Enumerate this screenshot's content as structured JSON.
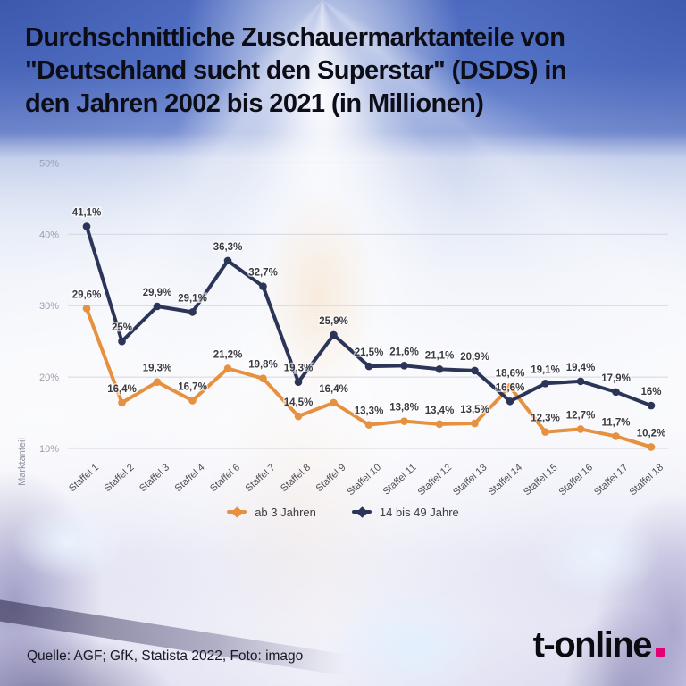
{
  "title": {
    "line1": "Durchschnittliche Zuschauermarktanteile von",
    "line2": "\"Deutschland sucht den Superstar\" (DSDS) in",
    "line3": "den Jahren 2002 bis 2021 (in Millionen)"
  },
  "chart_data": {
    "type": "line",
    "ylabel": "Marktanteil",
    "ylim": [
      10,
      50
    ],
    "grid": true,
    "legend_position": "bottom",
    "yticks": [
      {
        "value": 50,
        "label": "50%"
      },
      {
        "value": 40,
        "label": "40%"
      },
      {
        "value": 30,
        "label": "30%"
      },
      {
        "value": 20,
        "label": "20%"
      },
      {
        "value": 10,
        "label": "10%"
      }
    ],
    "categories": [
      "Staffel 1",
      "Staffel 2",
      "Staffel 3",
      "Staffel 4",
      "Staffel 6",
      "Staffel 7",
      "Staffel 8",
      "Staffel 9",
      "Staffel 10",
      "Staffel 11",
      "Staffel 12",
      "Staffel 13",
      "Staffel 14",
      "Staffel 15",
      "Staffel 16",
      "Staffel 17",
      "Staffel 18"
    ],
    "series": [
      {
        "name": "ab 3 Jahren",
        "color": "#e6913f",
        "values": [
          29.6,
          16.4,
          19.3,
          16.7,
          21.2,
          19.8,
          14.5,
          16.4,
          13.3,
          13.8,
          13.4,
          13.5,
          18.6,
          12.3,
          12.7,
          11.7,
          10.2
        ],
        "labels": [
          "29,6%",
          "16,4%",
          "19,3%",
          "16,7%",
          "21,2%",
          "19,8%",
          "14,5%",
          "16,4%",
          "13,3%",
          "13,8%",
          "13,4%",
          "13,5%",
          "18,6%",
          "12,3%",
          "12,7%",
          "11,7%",
          "10,2%"
        ]
      },
      {
        "name": "14 bis 49 Jahre",
        "color": "#2b3558",
        "values": [
          41.1,
          25,
          29.9,
          29.1,
          36.3,
          32.7,
          19.3,
          25.9,
          21.5,
          21.6,
          21.1,
          20.9,
          16.6,
          19.1,
          19.4,
          17.9,
          16
        ],
        "labels": [
          "41,1%",
          "25%",
          "29,9%",
          "29,1%",
          "36,3%",
          "32,7%",
          "19,3%",
          "25,9%",
          "21,5%",
          "21,6%",
          "21,1%",
          "20,9%",
          "16,6%",
          "19,1%",
          "19,4%",
          "17,9%",
          "16%"
        ]
      }
    ]
  },
  "footer": {
    "source": "Quelle: AGF; GfK, Statista 2022, Foto: imago",
    "logo_text": "t-online",
    "logo_dot_color": "#e20074"
  }
}
